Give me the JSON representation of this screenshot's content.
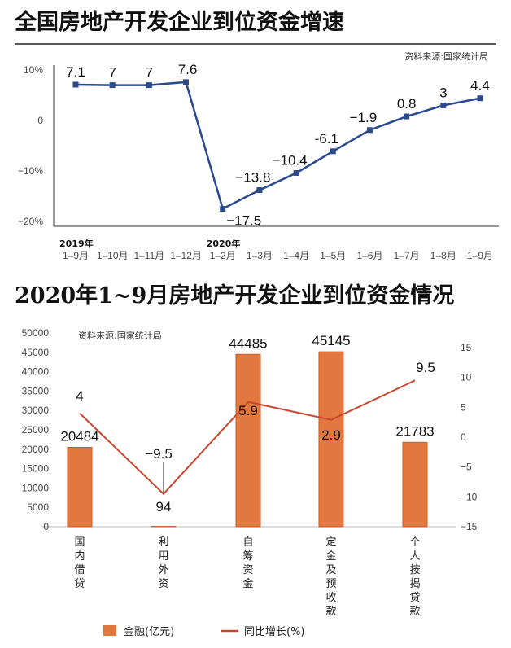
{
  "chart_data": [
    {
      "type": "line",
      "title": "全国房地产开发企业到位资金增速",
      "source": "资料来源:国家统计局",
      "year_labels": [
        {
          "index": 0,
          "text": "2019年"
        },
        {
          "index": 4,
          "text": "2020年"
        }
      ],
      "categories": [
        "1–9月",
        "1–10月",
        "1–11月",
        "1–12月",
        "1–2月",
        "1–3月",
        "1–4月",
        "1–5月",
        "1–6月",
        "1–7月",
        "1–8月",
        "1–9月"
      ],
      "values": [
        7.1,
        7,
        7,
        7.6,
        -17.5,
        -13.8,
        -10.4,
        -6.1,
        -1.9,
        0.8,
        3,
        4.4
      ],
      "data_labels": [
        "7.1",
        "7",
        "7",
        "7.6",
        "−17.5",
        "−13.8",
        "−10.4",
        "-6.1",
        "−1.9",
        "0.8",
        "3",
        "4.4"
      ],
      "yticks": [
        "10%",
        "0",
        "−10%",
        "−20%"
      ],
      "ylim": [
        -20,
        10
      ],
      "color": "#2b4a8e",
      "grid": false
    },
    {
      "type": "bar+line",
      "title": "2020年1~9月房地产开发企业到位资金情况",
      "source": "资料来源:国家统计局",
      "categories": [
        "国内借贷",
        "利用外资",
        "自筹资金",
        "定金及预收款",
        "个人按揭贷款"
      ],
      "series": [
        {
          "name": "金融(亿元)",
          "type": "bar",
          "values": [
            20484,
            94,
            44485,
            45145,
            21783
          ],
          "labels": [
            "20484",
            "94",
            "44485",
            "45145",
            "21783"
          ],
          "color": "#e2773f",
          "axis": "left"
        },
        {
          "name": "同比增长(%)",
          "type": "line",
          "values": [
            4,
            -9.5,
            5.9,
            2.9,
            9.5
          ],
          "labels": [
            "4",
            "−9.5",
            "5.9",
            "2.9",
            "9.5"
          ],
          "color": "#c8452e",
          "axis": "right"
        }
      ],
      "yticks_left": [
        "50000",
        "45000",
        "40000",
        "35000",
        "30000",
        "25000",
        "20000",
        "15000",
        "10000",
        "5000",
        "0"
      ],
      "ylim_left": [
        0,
        50000
      ],
      "yticks_right": [
        "15",
        "10",
        "5",
        "0",
        "−5",
        "−10",
        "−15"
      ],
      "ylim_right": [
        -15,
        15
      ],
      "legend": "bottom",
      "grid": false
    }
  ]
}
